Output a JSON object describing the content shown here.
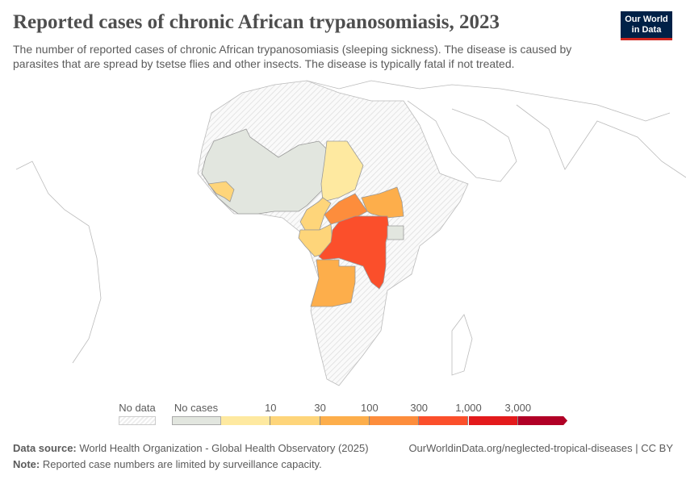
{
  "header": {
    "title": "Reported cases of chronic African trypanosomiasis, 2023",
    "subtitle": "The number of reported cases of chronic African trypanosomiasis (sleeping sickness). The disease is caused by parasites that are spread by tsetse flies and other insects. The disease is typically fatal if not treated.",
    "logo_line1": "Our World",
    "logo_line2": "in Data"
  },
  "legend": {
    "no_data_label": "No data",
    "no_cases_label": "No cases",
    "ticks": [
      "10",
      "30",
      "100",
      "300",
      "1,000",
      "3,000"
    ],
    "colors": {
      "no_data": "#f2f2f2",
      "no_cases": "#e2e6df",
      "bins": [
        "#fee9a0",
        "#fed57a",
        "#fdae4b",
        "#fd8d3c",
        "#fb4f2b",
        "#e31a1c",
        "#b10026"
      ]
    }
  },
  "map": {
    "regions": {
      "west-africa-no-cases": "no_cases",
      "uganda": "no_cases",
      "chad": "0-10",
      "guinea": "10-30",
      "cameroon": "10-30",
      "gabon-congo": "10-30",
      "south-sudan": "30-100",
      "angola": "30-100",
      "central-african-republic": "100-300",
      "dr-congo": "300-1,000"
    }
  },
  "footer": {
    "source_label": "Data source:",
    "source": "World Health Organization - Global Health Observatory (2025)",
    "url": "OurWorldinData.org/neglected-tropical-diseases | CC BY",
    "note_label": "Note:",
    "note": "Reported case numbers are limited by surveillance capacity."
  }
}
